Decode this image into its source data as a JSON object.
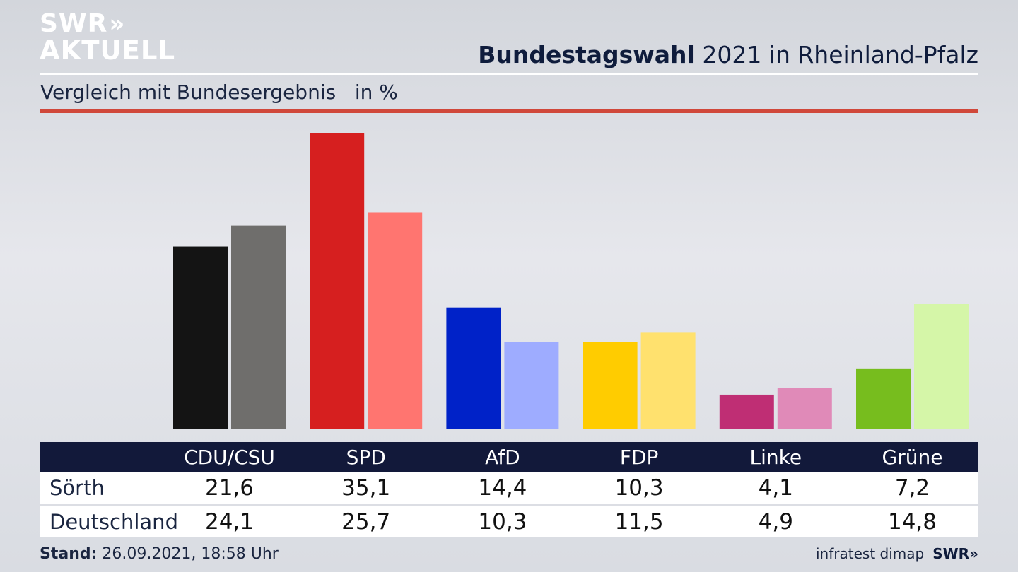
{
  "logo": {
    "line1": "SWR",
    "arrows": "»",
    "line2": "AKTUELL"
  },
  "header": {
    "title_bold": "Bundestagswahl",
    "title_rest": " 2021 in Rheinland-Pfalz"
  },
  "subtitle": "Vergleich mit Bundesergebnis   in %",
  "footer": {
    "stand_label": "Stand:",
    "stand_value": " 26.09.2021, 18:58 Uhr",
    "source": "infratest dimap",
    "brand": "SWR»"
  },
  "chart_data": {
    "type": "bar",
    "categories": [
      "CDU/CSU",
      "SPD",
      "AfD",
      "FDP",
      "Linke",
      "Grüne"
    ],
    "series": [
      {
        "name": "Sörth",
        "values": [
          21.6,
          35.1,
          14.4,
          10.3,
          4.1,
          7.2
        ],
        "colors": [
          "#141414",
          "#d61f1f",
          "#0022c8",
          "#ffcc00",
          "#bf2e74",
          "#77bd1e"
        ]
      },
      {
        "name": "Deutschland",
        "values": [
          24.1,
          25.7,
          10.3,
          11.5,
          4.9,
          14.8
        ],
        "colors": [
          "#6f6e6c",
          "#ff7570",
          "#9eacff",
          "#ffe16e",
          "#e08ab8",
          "#d5f6a8"
        ]
      }
    ],
    "value_labels": {
      "Sörth": [
        "21,6",
        "35,1",
        "14,4",
        "10,3",
        "4,1",
        "7,2"
      ],
      "Deutschland": [
        "24,1",
        "25,7",
        "10,3",
        "11,5",
        "4,9",
        "14,8"
      ]
    },
    "ylim": [
      0,
      35.1
    ],
    "grid": false
  }
}
